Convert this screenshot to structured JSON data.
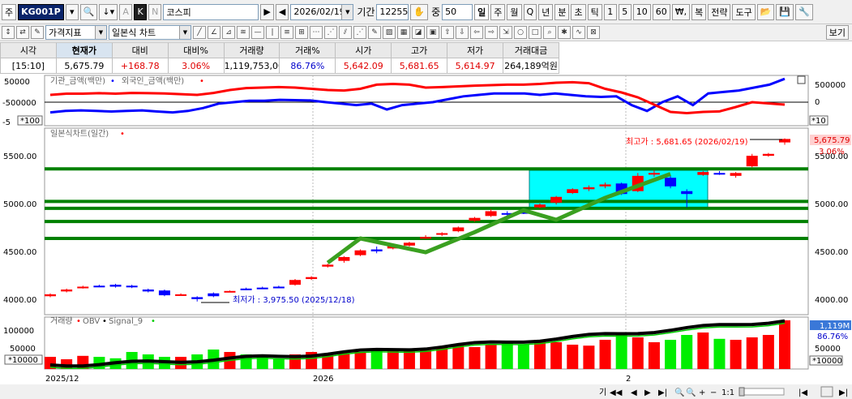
{
  "toolbar1": {
    "mode_label": "주",
    "code": "KG001P",
    "name": "코스피",
    "date": "2026/02/19",
    "period_label": "기간",
    "period_value": "12255",
    "count_label": "중",
    "count_value": "50",
    "letter_a": "A",
    "letter_k": "K",
    "letter_n": "N",
    "timeframes": [
      "일",
      "주",
      "월",
      "Q",
      "년",
      "분",
      "초",
      "틱",
      "1",
      "5",
      "10",
      "60"
    ],
    "won_label": "₩,",
    "btn_complex": "복",
    "btn_strategy": "전략",
    "btn_tools": "도구"
  },
  "toolbar2": {
    "price_indicator": "가격지표",
    "chart_type": "일본식 차트",
    "view_button": "보기"
  },
  "quote": {
    "headers": [
      "시각",
      "현재가",
      "대비",
      "대비%",
      "거래량",
      "거래%",
      "시가",
      "고가",
      "저가",
      "거래대금"
    ],
    "time": "[15:10]",
    "current": "5,675.79",
    "change": "+168.78",
    "change_pct": "3.06%",
    "volume": "1,119,753,000",
    "volume_pct": "86.76%",
    "open": "5,642.09",
    "high": "5,681.65",
    "low": "5,614.97",
    "amount": "264,189억원"
  },
  "flow_panel": {
    "legend_inst": "기관_금액(백만)",
    "legend_foreign": "외국인_금액(백만)",
    "left_ticks": [
      "50000",
      "-500000",
      "-5"
    ],
    "right_ticks": [
      "500000",
      "0",
      "-5"
    ],
    "unit": "*100",
    "unit_right": "*10",
    "colors": {
      "inst": "#0000ff",
      "foreign": "#ff0000"
    }
  },
  "price_panel": {
    "legend": "일본식차트(일간)",
    "left_ticks": [
      "5500.00",
      "5000.00",
      "4500.00",
      "4000.00"
    ],
    "right_ticks": [
      "5500.00",
      "5000.00",
      "4500.00",
      "4000.00"
    ],
    "high_annotation": "최고가 : 5,681.65 (2026/02/19)",
    "low_annotation": "최저가 : 3,975.50 (2025/12/18)",
    "current_tag": "5,675.79",
    "pct_tag": "3.06%",
    "colors": {
      "up": "#ff0000",
      "down": "#0000ff",
      "support": "#008000",
      "trend": "#3aa020",
      "box": "#00ffff"
    }
  },
  "volume_panel": {
    "legend_volume": "거래량",
    "legend_obv": "OBV",
    "legend_signal": "Signal_9",
    "left_ticks": [
      "100000",
      "50000",
      "*10000"
    ],
    "right_ticks": [
      "50000",
      "*10000"
    ],
    "volume_tag": "1,119M",
    "pct_tag": "86.76%",
    "colors": {
      "volume_up": "#ff0000",
      "volume_down": "#00ee00",
      "obv": "#000000",
      "signal": "#00cc00"
    }
  },
  "x_axis": {
    "labels": [
      "2025/12",
      "2026",
      "2"
    ]
  },
  "bottom_bar": {
    "zoom_label": "1:1",
    "text_k": "기"
  }
}
